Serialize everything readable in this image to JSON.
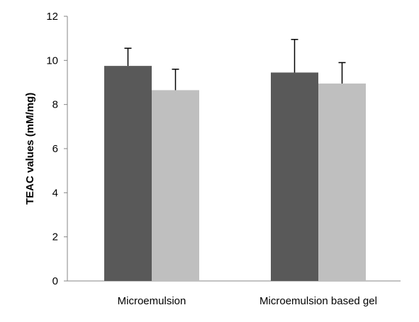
{
  "chart_data": {
    "type": "bar",
    "categories": [
      "Microemulsion",
      "Microemulsion based gel"
    ],
    "series": [
      {
        "values": [
          9.75,
          9.45
        ],
        "errors": [
          0.8,
          1.5
        ],
        "color": "#595959"
      },
      {
        "values": [
          8.65,
          8.95
        ],
        "errors": [
          0.95,
          0.95
        ],
        "color": "#bfbfbf"
      }
    ],
    "title": "",
    "xlabel": "",
    "ylabel": "TEAC values (mM/mg)",
    "ylim": [
      0,
      12
    ],
    "yticks": [
      "0",
      "2",
      "4",
      "6",
      "8",
      "10",
      "12"
    ],
    "grid": false,
    "legend": "none"
  }
}
